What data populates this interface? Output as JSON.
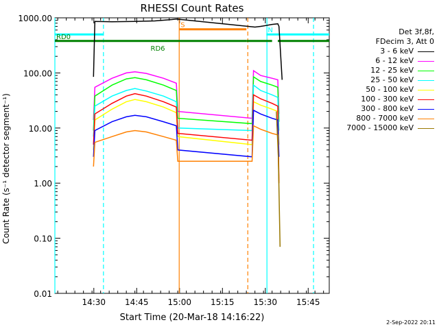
{
  "chart_data": {
    "type": "line",
    "title": "RHESSI Count Rates",
    "xlabel": "Start Time (20-Mar-18 14:16:22)",
    "ylabel": "Count Rate (s⁻¹ detector segment⁻¹)",
    "y_scale": "log",
    "ylim": [
      0.01,
      1000
    ],
    "y_tick_labels": [
      "0.01",
      "0.10",
      "1.00",
      "10.00",
      "100.00",
      "1000.00"
    ],
    "y_tick_values": [
      0.01,
      0.1,
      1,
      10,
      100,
      1000
    ],
    "xlim_minutes": [
      0,
      96
    ],
    "x_tick_labels": [
      "14:30",
      "14:45",
      "15:00",
      "15:15",
      "15:30",
      "15:45"
    ],
    "x_tick_minutes": [
      13.63,
      28.63,
      43.63,
      58.63,
      73.63,
      88.63
    ],
    "legend_header": [
      "Det 3f,8f,",
      "FDecim 3, Att 0"
    ],
    "series": [
      {
        "name": "3 - 6 keV",
        "color": "#000000",
        "x": [
          13.5,
          14,
          20,
          28,
          35,
          41,
          42.5,
          70,
          72,
          76,
          78,
          78.4,
          79.5
        ],
        "y": [
          85,
          860,
          850,
          860,
          880,
          930,
          950,
          680,
          700,
          760,
          780,
          700,
          75
        ]
      },
      {
        "name": "6 - 12 keV",
        "color": "#ff00ff",
        "x": [
          13.5,
          14,
          20,
          25,
          28,
          32,
          38,
          42.5,
          43,
          69,
          69.5,
          72,
          76,
          78,
          78.4
        ],
        "y": [
          14,
          55,
          80,
          100,
          105,
          98,
          80,
          65,
          20,
          15,
          110,
          90,
          80,
          75,
          18
        ]
      },
      {
        "name": "12 - 25 keV",
        "color": "#00ff00",
        "x": [
          13.5,
          14,
          20,
          25,
          28,
          32,
          38,
          42.5,
          43,
          69,
          69.5,
          72,
          76,
          78,
          78.4
        ],
        "y": [
          9,
          38,
          60,
          78,
          82,
          75,
          60,
          48,
          15,
          12,
          85,
          70,
          60,
          55,
          13
        ]
      },
      {
        "name": "25 - 50 keV",
        "color": "#00ffff",
        "x": [
          13.5,
          14,
          20,
          25,
          28,
          32,
          38,
          42.5,
          43,
          69,
          69.5,
          72,
          76,
          78,
          78.4
        ],
        "y": [
          7,
          25,
          38,
          48,
          52,
          47,
          38,
          30,
          10,
          9,
          60,
          48,
          40,
          36,
          9
        ]
      },
      {
        "name": "50 - 100 keV",
        "color": "#ffff00",
        "x": [
          13.5,
          14,
          20,
          25,
          28,
          32,
          38,
          42.5,
          43,
          69,
          69.5,
          72,
          76,
          78,
          78.4
        ],
        "y": [
          4,
          14,
          22,
          30,
          33,
          30,
          24,
          19,
          7,
          5,
          30,
          26,
          22,
          20,
          5
        ]
      },
      {
        "name": "100 - 300 keV",
        "color": "#ff0000",
        "x": [
          13.5,
          14,
          20,
          25,
          28,
          32,
          38,
          42.5,
          43,
          69,
          69.5,
          72,
          76,
          78,
          78.4
        ],
        "y": [
          5,
          18,
          28,
          38,
          42,
          38,
          30,
          24,
          8,
          6,
          40,
          34,
          28,
          25,
          1
        ]
      },
      {
        "name": "300 - 800 keV",
        "color": "#0000ff",
        "x": [
          13.5,
          14,
          20,
          25,
          28,
          32,
          38,
          42.5,
          43,
          69,
          69.5,
          72,
          76,
          78,
          78.4
        ],
        "y": [
          3,
          9,
          13,
          16,
          17,
          16,
          13,
          11,
          4,
          3,
          21,
          18,
          15,
          14,
          3
        ]
      },
      {
        "name": "800 - 7000 keV",
        "color": "#ff8000",
        "x": [
          13.5,
          14,
          20,
          25,
          28,
          32,
          38,
          42.5,
          43,
          69,
          69.5,
          72,
          76,
          78,
          78.4
        ],
        "y": [
          2,
          5.5,
          7,
          8.5,
          9,
          8.5,
          7,
          6,
          2.5,
          2.5,
          11,
          9.5,
          8,
          7.5,
          1
        ]
      },
      {
        "name": "7000 - 15000 keV",
        "color": "#997700",
        "x": [
          77.5,
          78.2,
          78.8
        ],
        "y": [
          20,
          3,
          0.07
        ]
      }
    ],
    "flags": [
      {
        "label": "",
        "color": "#00ffff",
        "style": "solid",
        "y": 500,
        "x_start": 0,
        "x_end": 17
      },
      {
        "label": "N",
        "color": "#00ffff",
        "style": "solid",
        "y": 500,
        "x_start": 74,
        "x_end": 96
      },
      {
        "label": "RD0",
        "color": "#008000",
        "style": "solid",
        "y": 380,
        "x_start": 0,
        "x_end": 33
      },
      {
        "label": "RD6",
        "color": "#008000",
        "style": "solid",
        "y": 380,
        "x_start": 33,
        "x_end": 67
      },
      {
        "label": "",
        "color": "#008000",
        "style": "solid",
        "y": 380,
        "x_start": 67,
        "x_end": 76
      },
      {
        "label": "",
        "color": "#008000",
        "style": "solid",
        "y": 380,
        "x_start": 78,
        "x_end": 96
      },
      {
        "label": "S",
        "color": "#ff8000",
        "style": "solid",
        "y": 620,
        "x_start": 43.5,
        "x_end": 67
      }
    ],
    "markers": [
      {
        "x": 0,
        "color": "#00ffff",
        "style": "solid"
      },
      {
        "x": 17,
        "color": "#00ffff",
        "style": "dashed"
      },
      {
        "x": 43.5,
        "color": "#ff8000",
        "style": "solid"
      },
      {
        "x": 67.5,
        "color": "#ff8000",
        "style": "dashed"
      },
      {
        "x": 74.2,
        "color": "#00ffff",
        "style": "solid"
      },
      {
        "x": 90.5,
        "color": "#00ffff",
        "style": "dashed"
      }
    ],
    "grid": false,
    "legend_position": "right"
  },
  "footer": {
    "timestamp": "2-Sep-2022 20:11"
  }
}
